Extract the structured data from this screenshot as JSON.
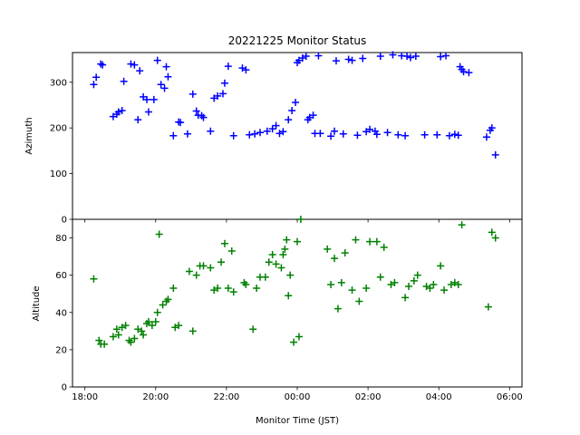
{
  "chart_data": {
    "type": "scatter",
    "title": "20221225 Monitor Status",
    "xlabel": "Monitor Time (JST)",
    "x_ticks": [
      "18:00",
      "20:00",
      "22:00",
      "00:00",
      "02:00",
      "04:00",
      "06:00"
    ],
    "x_unit": "hours since 18:00 JST (2022-12-25)",
    "xlim": [
      -0.35,
      12.35
    ],
    "marker": "+",
    "panels": [
      {
        "name": "azimuth",
        "ylabel": "Azimuth",
        "ylim": [
          0,
          365
        ],
        "y_ticks": [
          0,
          100,
          200,
          300
        ],
        "color": "#0000ff",
        "x": [
          0.25,
          0.32,
          0.45,
          0.5,
          0.8,
          0.9,
          0.95,
          1.05,
          1.1,
          1.3,
          1.4,
          1.5,
          1.55,
          1.65,
          1.75,
          1.8,
          1.95,
          2.05,
          2.15,
          2.25,
          2.3,
          2.35,
          2.5,
          2.65,
          2.7,
          2.9,
          3.05,
          3.15,
          3.2,
          3.3,
          3.35,
          3.55,
          3.65,
          3.75,
          3.9,
          3.95,
          4.05,
          4.2,
          4.45,
          4.55,
          4.65,
          4.8,
          4.95,
          5.15,
          5.3,
          5.4,
          5.5,
          5.6,
          5.75,
          5.85,
          5.95,
          6.0,
          6.05,
          6.15,
          6.25,
          6.3,
          6.35,
          6.45,
          6.5,
          6.6,
          6.65,
          6.95,
          7.05,
          7.1,
          7.3,
          7.45,
          7.55,
          7.7,
          7.85,
          7.95,
          8.05,
          8.2,
          8.25,
          8.35,
          8.55,
          8.7,
          8.85,
          8.95,
          9.05,
          9.1,
          9.2,
          9.35,
          9.6,
          9.95,
          10.05,
          10.2,
          10.3,
          10.45,
          10.55,
          10.6,
          10.65,
          10.7,
          10.85,
          11.35,
          11.45,
          11.5,
          11.6
        ],
        "y": [
          295,
          311,
          340,
          338,
          225,
          230,
          235,
          238,
          302,
          340,
          338,
          218,
          325,
          268,
          262,
          235,
          262,
          348,
          295,
          287,
          334,
          312,
          183,
          213,
          212,
          187,
          274,
          237,
          228,
          227,
          223,
          193,
          265,
          270,
          275,
          298,
          335,
          183,
          331,
          327,
          185,
          187,
          190,
          193,
          198,
          205,
          188,
          192,
          218,
          238,
          256,
          343,
          348,
          353,
          357,
          218,
          223,
          228,
          188,
          358,
          188,
          182,
          193,
          347,
          187,
          350,
          348,
          184,
          352,
          192,
          197,
          193,
          186,
          357,
          190,
          360,
          185,
          358,
          183,
          357,
          354,
          357,
          185,
          185,
          356,
          358,
          183,
          186,
          184,
          334,
          328,
          323,
          321,
          180,
          195,
          200,
          141
        ]
      },
      {
        "name": "altitude",
        "ylabel": "Altitude",
        "ylim": [
          0,
          90
        ],
        "y_ticks": [
          0,
          20,
          40,
          60,
          80
        ],
        "color": "#008000",
        "x": [
          0.25,
          0.4,
          0.45,
          0.55,
          0.8,
          0.9,
          0.95,
          1.05,
          1.15,
          1.25,
          1.3,
          1.4,
          1.5,
          1.6,
          1.65,
          1.75,
          1.8,
          1.9,
          2.0,
          2.05,
          2.1,
          2.2,
          2.3,
          2.35,
          2.5,
          2.55,
          2.65,
          2.95,
          3.05,
          3.15,
          3.25,
          3.35,
          3.55,
          3.65,
          3.75,
          3.85,
          3.95,
          4.05,
          4.15,
          4.2,
          4.5,
          4.55,
          4.75,
          4.85,
          4.95,
          5.1,
          5.2,
          5.3,
          5.4,
          5.55,
          5.6,
          5.65,
          5.7,
          5.75,
          5.8,
          5.9,
          6.0,
          6.05,
          6.1,
          6.85,
          6.95,
          7.05,
          7.15,
          7.25,
          7.35,
          7.55,
          7.65,
          7.75,
          7.95,
          8.05,
          8.25,
          8.35,
          8.45,
          8.65,
          8.75,
          9.05,
          9.15,
          9.3,
          9.4,
          9.65,
          9.75,
          9.85,
          10.05,
          10.15,
          10.35,
          10.45,
          10.55,
          10.65,
          11.4,
          11.5,
          11.6
        ],
        "y": [
          58,
          25,
          23,
          23,
          27,
          31,
          28,
          32,
          33,
          25,
          24,
          26,
          31,
          30,
          28,
          34,
          35,
          33,
          35,
          40,
          82,
          44,
          46,
          47,
          53,
          32,
          33,
          62,
          30,
          60,
          65,
          65,
          64,
          52,
          53,
          67,
          77,
          53,
          73,
          51,
          56,
          55,
          31,
          53,
          59,
          59,
          67,
          71,
          66,
          64,
          71,
          74,
          79,
          49,
          60,
          24,
          78,
          27,
          90,
          74,
          55,
          69,
          42,
          56,
          72,
          52,
          79,
          46,
          53,
          78,
          78,
          59,
          75,
          55,
          56,
          48,
          54,
          57,
          60,
          54,
          53,
          55,
          65,
          52,
          55,
          56,
          55,
          87,
          43,
          83,
          80
        ]
      }
    ]
  }
}
